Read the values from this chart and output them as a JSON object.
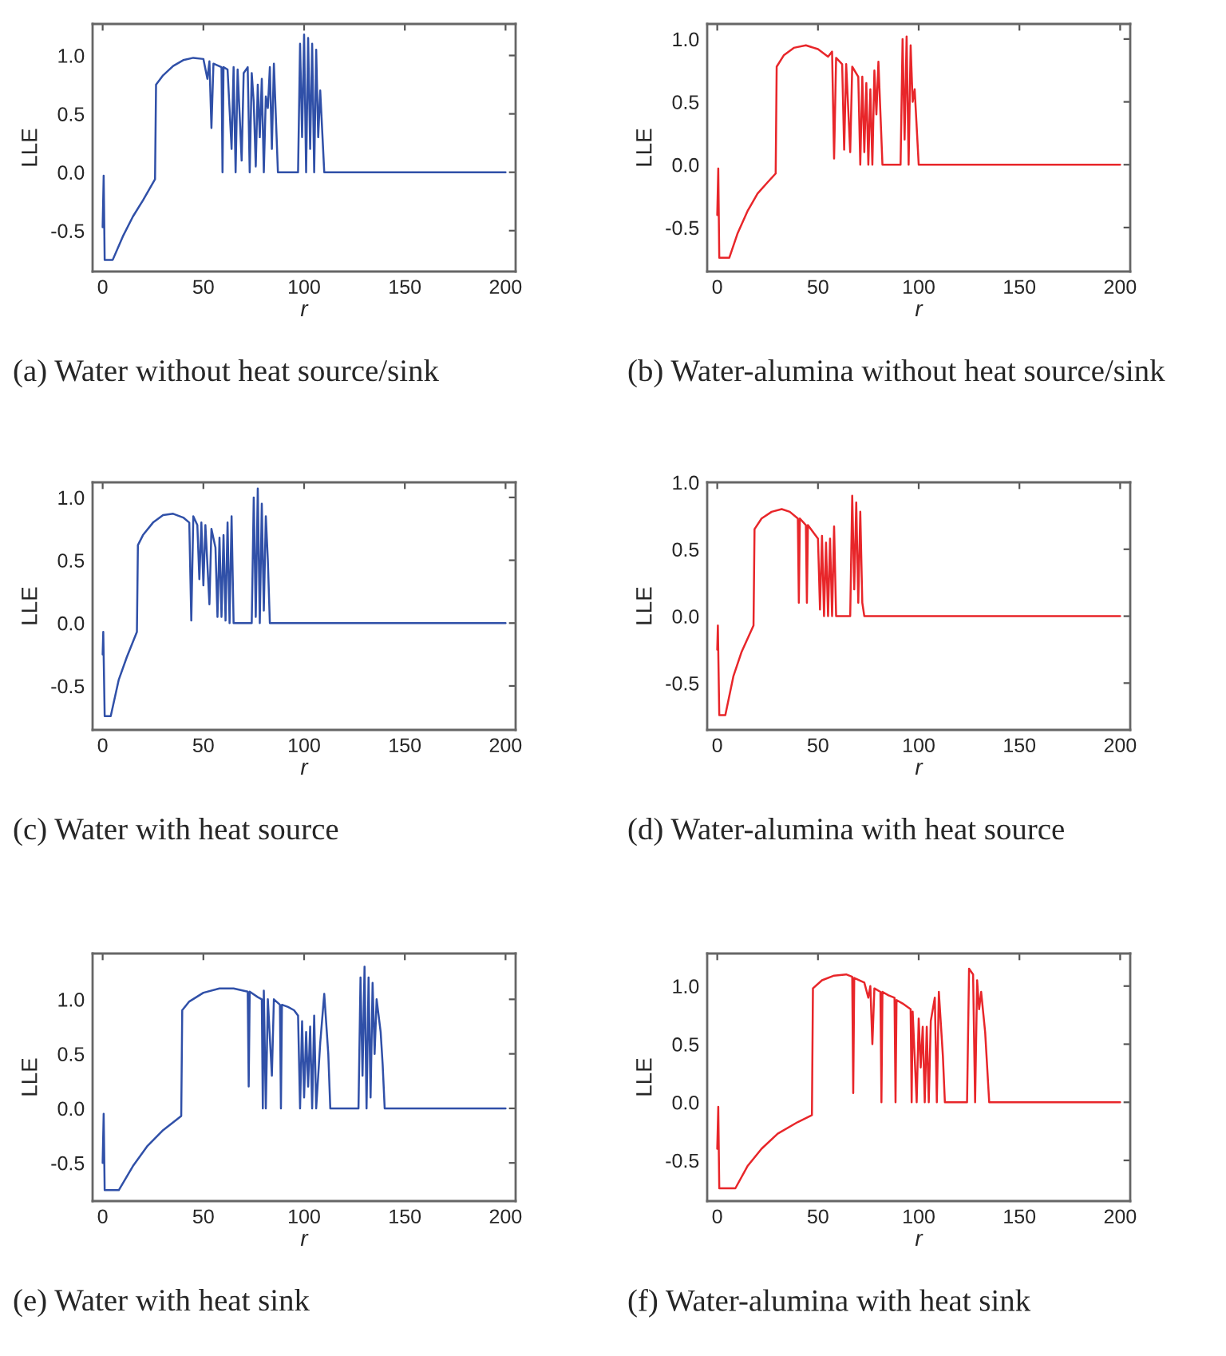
{
  "chart_data": [
    {
      "type": "line",
      "title": "(a) Water without heat source/sink",
      "xlabel": "r",
      "ylabel": "LLE",
      "xlim": [
        -5,
        205
      ],
      "xticks": [
        0,
        50,
        100,
        150,
        200
      ],
      "ylim": [
        -0.85,
        1.27
      ],
      "yticks": [
        {
          "value": -0.5,
          "label": "-0.5"
        },
        {
          "value": 0,
          "label": "0.0"
        },
        {
          "value": 0.5,
          "label": "0.5"
        },
        {
          "value": 1,
          "label": "1.0"
        }
      ],
      "grid": false,
      "series": [
        {
          "color": "#3050a8",
          "x": [
            0,
            0.5,
            1,
            5,
            10,
            15,
            20,
            26,
            26.5,
            30,
            35,
            40,
            45,
            50,
            52,
            53,
            54,
            55,
            59,
            59.5,
            60,
            62,
            64,
            65,
            66,
            67,
            69,
            70,
            72,
            73,
            74,
            75,
            76,
            77,
            78,
            79,
            80,
            81,
            82,
            83,
            84,
            85,
            87,
            97,
            98,
            99,
            100,
            101,
            102,
            103,
            104,
            105,
            106,
            107,
            108,
            110,
            130,
            200
          ],
          "values": [
            -0.47,
            -0.03,
            -0.75,
            -0.75,
            -0.55,
            -0.38,
            -0.24,
            -0.06,
            0.75,
            0.83,
            0.91,
            0.96,
            0.98,
            0.97,
            0.8,
            0.95,
            0.38,
            0.93,
            0.9,
            0.0,
            0.9,
            0.88,
            0.2,
            0.9,
            0.0,
            0.88,
            0.1,
            0.85,
            0.9,
            0.0,
            0.85,
            0.6,
            0.05,
            0.75,
            0.3,
            0.8,
            0.0,
            0.65,
            0.55,
            0.9,
            0.2,
            0.93,
            0.0,
            0.0,
            1.1,
            0.3,
            1.18,
            0.0,
            1.15,
            0.2,
            1.1,
            0.0,
            1.05,
            0.3,
            0.7,
            0.0,
            0.0,
            0.0
          ]
        }
      ]
    },
    {
      "type": "line",
      "title": "(b) Water-alumina without heat source/sink",
      "xlabel": "r",
      "ylabel": "LLE",
      "xlim": [
        -5,
        205
      ],
      "xticks": [
        0,
        50,
        100,
        150,
        200
      ],
      "ylim": [
        -0.85,
        1.12
      ],
      "yticks": [
        {
          "value": -0.5,
          "label": "-0.5"
        },
        {
          "value": 0,
          "label": "0.0"
        },
        {
          "value": 0.5,
          "label": "0.5"
        },
        {
          "value": 1,
          "label": "1.0"
        }
      ],
      "grid": false,
      "series": [
        {
          "color": "#e8262a",
          "x": [
            0,
            0.5,
            1,
            6,
            10,
            15,
            20,
            25,
            29,
            29.5,
            33,
            38,
            44,
            50,
            55,
            57,
            58,
            59,
            62,
            63,
            64,
            66,
            67,
            70,
            71,
            72,
            73,
            74,
            75,
            76,
            77,
            78,
            79,
            80,
            82,
            91,
            92,
            93,
            94,
            95,
            96,
            97,
            98,
            100,
            200
          ],
          "values": [
            -0.4,
            -0.03,
            -0.74,
            -0.74,
            -0.55,
            -0.37,
            -0.23,
            -0.14,
            -0.07,
            0.78,
            0.87,
            0.93,
            0.95,
            0.92,
            0.86,
            0.9,
            0.05,
            0.85,
            0.8,
            0.12,
            0.8,
            0.1,
            0.78,
            0.7,
            0.0,
            0.7,
            0.1,
            0.65,
            0.0,
            0.6,
            0.0,
            0.75,
            0.4,
            0.82,
            0.0,
            0.0,
            1.0,
            0.2,
            1.02,
            0.0,
            0.95,
            0.5,
            0.6,
            0.0,
            0.0
          ]
        }
      ]
    },
    {
      "type": "line",
      "title": "(c) Water with heat source",
      "xlabel": "r",
      "ylabel": "LLE",
      "xlim": [
        -5,
        205
      ],
      "xticks": [
        0,
        50,
        100,
        150,
        200
      ],
      "ylim": [
        -0.85,
        1.12
      ],
      "yticks": [
        {
          "value": -0.5,
          "label": "-0.5"
        },
        {
          "value": 0,
          "label": "0.0"
        },
        {
          "value": 0.5,
          "label": "0.5"
        },
        {
          "value": 1,
          "label": "1.0"
        }
      ],
      "grid": false,
      "series": [
        {
          "color": "#3050a8",
          "x": [
            0,
            0.3,
            1,
            4,
            8,
            12,
            17,
            17.5,
            20,
            25,
            30,
            35,
            40,
            43,
            44,
            45,
            47,
            48,
            49,
            50,
            51,
            53,
            54,
            56,
            57,
            58,
            59,
            60,
            61,
            62,
            63,
            64,
            65,
            74,
            75,
            76,
            77,
            78,
            79,
            80,
            81,
            82,
            83,
            200
          ],
          "values": [
            -0.25,
            -0.07,
            -0.74,
            -0.74,
            -0.45,
            -0.27,
            -0.07,
            0.62,
            0.7,
            0.8,
            0.86,
            0.87,
            0.84,
            0.8,
            0.02,
            0.85,
            0.78,
            0.35,
            0.8,
            0.3,
            0.78,
            0.15,
            0.75,
            0.6,
            0.05,
            0.68,
            0.05,
            0.7,
            0.02,
            0.8,
            0.0,
            0.85,
            0.0,
            0.0,
            1.0,
            0.05,
            1.07,
            0.0,
            0.95,
            0.1,
            0.85,
            0.5,
            0.0,
            0.0
          ]
        }
      ]
    },
    {
      "type": "line",
      "title": "(d) Water-alumina with heat source",
      "xlabel": "r",
      "ylabel": "LLE",
      "xlim": [
        -5,
        205
      ],
      "xticks": [
        0,
        50,
        100,
        150,
        200
      ],
      "ylim": [
        -0.85,
        1.0
      ],
      "yticks": [
        {
          "value": -0.5,
          "label": "-0.5"
        },
        {
          "value": 0,
          "label": "0.0"
        },
        {
          "value": 0.5,
          "label": "0.5"
        },
        {
          "value": 1,
          "label": "1.0"
        }
      ],
      "grid": false,
      "series": [
        {
          "color": "#e8262a",
          "x": [
            0,
            0.3,
            1,
            4,
            8,
            12,
            18,
            18.5,
            22,
            27,
            32,
            36,
            40,
            40.5,
            41,
            44,
            44.5,
            45,
            48,
            50,
            51,
            52,
            53,
            54,
            55,
            56,
            57,
            58,
            59,
            66,
            67,
            68,
            69,
            70,
            71,
            72,
            73,
            200
          ],
          "values": [
            -0.25,
            -0.07,
            -0.74,
            -0.74,
            -0.45,
            -0.27,
            -0.07,
            0.65,
            0.73,
            0.78,
            0.8,
            0.78,
            0.73,
            0.1,
            0.73,
            0.68,
            0.1,
            0.68,
            0.62,
            0.58,
            0.05,
            0.6,
            0.0,
            0.55,
            0.0,
            0.58,
            0.0,
            0.67,
            0.0,
            0.0,
            0.9,
            0.2,
            0.85,
            0.1,
            0.78,
            0.1,
            0.0,
            0.0
          ]
        }
      ]
    },
    {
      "type": "line",
      "title": "(e) Water with heat sink",
      "xlabel": "r",
      "ylabel": "LLE",
      "xlim": [
        -5,
        205
      ],
      "xticks": [
        0,
        50,
        100,
        150,
        200
      ],
      "ylim": [
        -0.85,
        1.42
      ],
      "yticks": [
        {
          "value": -0.5,
          "label": "-0.5"
        },
        {
          "value": 0,
          "label": "0.0"
        },
        {
          "value": 0.5,
          "label": "0.5"
        },
        {
          "value": 1,
          "label": "1.0"
        }
      ],
      "grid": false,
      "series": [
        {
          "color": "#3050a8",
          "x": [
            0,
            0.5,
            1,
            8,
            15,
            22,
            30,
            39,
            39.5,
            43,
            50,
            58,
            65,
            72,
            72.5,
            73,
            77,
            79,
            79.5,
            80,
            81,
            82,
            84,
            85,
            88,
            88.5,
            89,
            92,
            95,
            97,
            98,
            99,
            100,
            101,
            102,
            103,
            104,
            105,
            106,
            108,
            110,
            112,
            113,
            127,
            128,
            129,
            130,
            131,
            132,
            133,
            134,
            135,
            136,
            138,
            139,
            140,
            200
          ],
          "values": [
            -0.5,
            -0.05,
            -0.75,
            -0.75,
            -0.53,
            -0.35,
            -0.2,
            -0.07,
            0.9,
            0.98,
            1.06,
            1.1,
            1.1,
            1.07,
            0.2,
            1.07,
            1.02,
            1.0,
            0.0,
            1.08,
            0.0,
            1.0,
            0.3,
            1.0,
            0.95,
            0.0,
            0.95,
            0.93,
            0.9,
            0.85,
            0.0,
            0.8,
            0.1,
            0.7,
            0.2,
            0.75,
            0.0,
            0.85,
            0.0,
            0.6,
            1.05,
            0.5,
            0.0,
            0.0,
            1.2,
            0.3,
            1.3,
            0.0,
            1.2,
            0.1,
            1.15,
            0.5,
            1.0,
            0.7,
            0.4,
            0.0,
            0.0
          ]
        }
      ]
    },
    {
      "type": "line",
      "title": "(f) Water-alumina with heat sink",
      "xlabel": "r",
      "ylabel": "LLE",
      "xlim": [
        -5,
        205
      ],
      "xticks": [
        0,
        50,
        100,
        150,
        200
      ],
      "ylim": [
        -0.85,
        1.28
      ],
      "yticks": [
        {
          "value": -0.5,
          "label": "-0.5"
        },
        {
          "value": 0,
          "label": "0.0"
        },
        {
          "value": 0.5,
          "label": "0.5"
        },
        {
          "value": 1,
          "label": "1.0"
        }
      ],
      "grid": false,
      "series": [
        {
          "color": "#e8262a",
          "x": [
            0,
            0.5,
            1,
            9,
            15,
            22,
            30,
            40,
            47,
            47.5,
            52,
            58,
            64,
            67,
            67.5,
            68,
            73,
            75,
            76,
            77,
            78,
            81,
            81.5,
            82,
            85,
            88,
            88.5,
            89,
            92,
            96,
            96.5,
            97,
            99,
            100,
            101,
            102,
            103,
            104,
            105,
            106,
            108,
            109,
            110,
            112,
            113,
            124,
            125,
            127,
            128,
            129,
            130,
            131,
            133,
            135,
            200
          ],
          "values": [
            -0.4,
            -0.04,
            -0.74,
            -0.74,
            -0.55,
            -0.4,
            -0.27,
            -0.17,
            -0.11,
            0.98,
            1.05,
            1.09,
            1.1,
            1.08,
            0.08,
            1.07,
            1.03,
            0.9,
            1.0,
            0.5,
            0.98,
            0.95,
            0.0,
            0.95,
            0.92,
            0.9,
            0.0,
            0.88,
            0.85,
            0.8,
            0.0,
            0.78,
            0.0,
            0.72,
            0.3,
            0.65,
            0.0,
            0.65,
            0.0,
            0.7,
            0.9,
            0.0,
            0.95,
            0.4,
            0.0,
            0.0,
            1.15,
            1.1,
            0.0,
            1.05,
            0.8,
            0.95,
            0.6,
            0.0,
            0.0
          ]
        }
      ]
    }
  ]
}
